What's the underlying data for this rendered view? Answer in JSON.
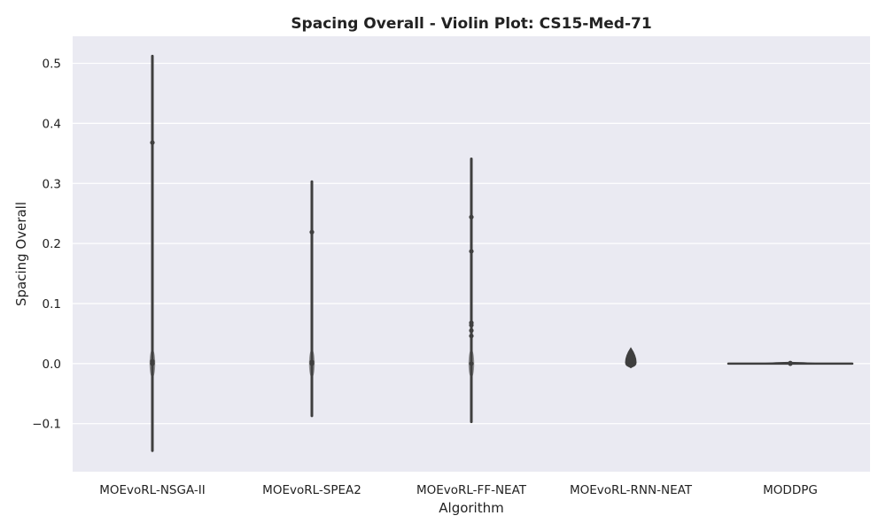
{
  "chart_data": {
    "type": "violin",
    "title": "Spacing Overall - Violin Plot: CS15-Med-71",
    "xlabel": "Algorithm",
    "ylabel": "Spacing Overall",
    "ylim": [
      -0.18,
      0.545
    ],
    "yticks": [
      -0.1,
      0.0,
      0.1,
      0.2,
      0.3,
      0.4,
      0.5
    ],
    "ytick_labels": [
      "−0.1",
      "0.0",
      "0.1",
      "0.2",
      "0.3",
      "0.4",
      "0.5"
    ],
    "grid": true,
    "categories": [
      "MOEvoRL-NSGA-II",
      "MOEvoRL-SPEA2",
      "MOEvoRL-FF-NEAT",
      "MOEvoRL-RNN-NEAT",
      "MODDPG"
    ],
    "colors": {
      "plot_background": "#eaeaf2",
      "grid": "#ffffff",
      "violin_stroke": "#3f3f3f",
      "points": "#3f3f3f"
    },
    "series": [
      {
        "category": "MOEvoRL-NSGA-II",
        "min": -0.145,
        "max": 0.512,
        "points": [
          0.368,
          0.004,
          0.001,
          0.0,
          0.0,
          0.0
        ]
      },
      {
        "category": "MOEvoRL-SPEA2",
        "min": -0.087,
        "max": 0.303,
        "points": [
          0.219,
          0.003,
          0.001,
          0.0,
          0.0
        ]
      },
      {
        "category": "MOEvoRL-FF-NEAT",
        "min": -0.097,
        "max": 0.341,
        "points": [
          0.244,
          0.187,
          0.068,
          0.064,
          0.055,
          0.046,
          0.0
        ]
      },
      {
        "category": "MOEvoRL-RNN-NEAT",
        "min": -0.007,
        "max": 0.026,
        "points": [
          0.005,
          0.003,
          0.0,
          -0.002
        ]
      },
      {
        "category": "MODDPG",
        "min": 0.0,
        "max": 0.002,
        "points": [
          0.001,
          0.0,
          0.0
        ]
      }
    ]
  }
}
